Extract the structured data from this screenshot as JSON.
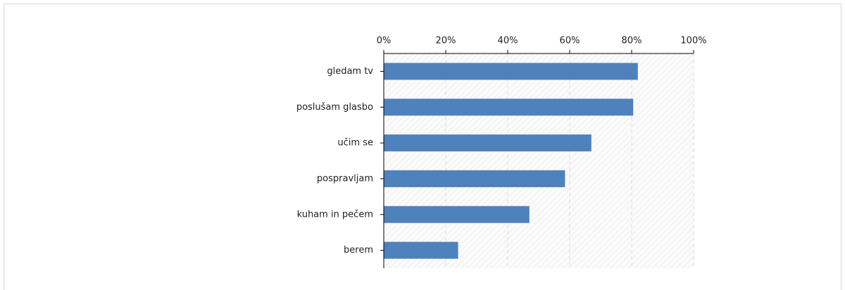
{
  "chart_data": {
    "type": "bar",
    "orientation": "horizontal",
    "categories": [
      "gledam tv",
      "poslušam glasbo",
      "učim se",
      "pospravljam",
      "kuham in pečem",
      "berem"
    ],
    "values": [
      82,
      80.5,
      67,
      58.5,
      47,
      24
    ],
    "color": "#4f81bd",
    "xlim": [
      0,
      100
    ],
    "xticks": [
      {
        "value": 0,
        "label": "0%"
      },
      {
        "value": 20,
        "label": "20%"
      },
      {
        "value": 40,
        "label": "40%"
      },
      {
        "value": 60,
        "label": "60%"
      },
      {
        "value": 80,
        "label": "80%"
      },
      {
        "value": 100,
        "label": "100%"
      }
    ],
    "grid": true
  }
}
